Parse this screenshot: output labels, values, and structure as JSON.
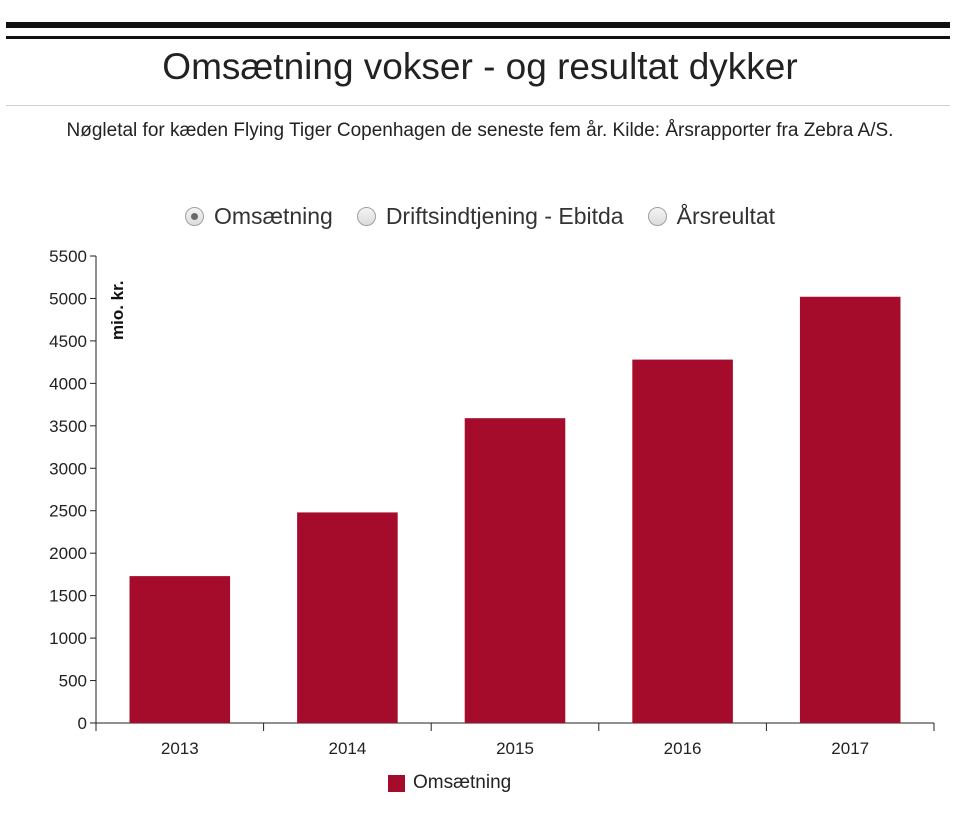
{
  "title": "Omsætning vokser - og resultat dykker",
  "subtitle": "Nøgletal for kæden Flying Tiger Copenhagen de seneste fem år. Kilde: Årsrapporter fra Zebra A/S.",
  "selector": {
    "options": [
      {
        "label": "Omsætning",
        "checked": true
      },
      {
        "label": "Driftsindtjening - Ebitda",
        "checked": false
      },
      {
        "label": "Årsreultat",
        "checked": false
      }
    ]
  },
  "colors": {
    "bar": "#a50b2b",
    "rule": "#111111"
  },
  "chart_data": {
    "type": "bar",
    "categories": [
      "2013",
      "2014",
      "2015",
      "2016",
      "2017"
    ],
    "series": [
      {
        "name": "Omsætning",
        "values": [
          1730,
          2480,
          3590,
          4280,
          5020
        ]
      }
    ],
    "ylabel": "mio. kr.",
    "xlabel": "",
    "ylim": [
      0,
      5500
    ],
    "yticks": [
      0,
      500,
      1000,
      1500,
      2000,
      2500,
      3000,
      3500,
      4000,
      4500,
      5000,
      5500
    ],
    "grid": false,
    "legend_position": "bottom-center"
  }
}
